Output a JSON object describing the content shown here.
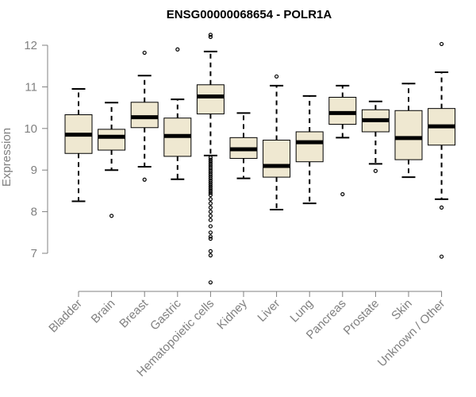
{
  "chart_data": {
    "type": "boxplot",
    "title": "ENSG00000068654 - POLR1A",
    "xlabel": "",
    "ylabel": "Expression",
    "ylim": [
      6.15,
      12.25
    ],
    "yticks": [
      7,
      8,
      9,
      10,
      11,
      12
    ],
    "grid": false,
    "box_color": "#efe8d1",
    "categories": [
      "Bladder",
      "Brain",
      "Breast",
      "Gastric",
      "Hematopoietic cells",
      "Kidney",
      "Liver",
      "Lung",
      "Pancreas",
      "Prostate",
      "Skin",
      "Unknown / Other"
    ],
    "boxes": [
      {
        "low": 8.25,
        "q1": 9.4,
        "median": 9.85,
        "q3": 10.33,
        "high": 10.95,
        "outliers": []
      },
      {
        "low": 9.0,
        "q1": 9.48,
        "median": 9.8,
        "q3": 9.98,
        "high": 10.62,
        "outliers": [
          7.9
        ]
      },
      {
        "low": 9.08,
        "q1": 10.02,
        "median": 10.27,
        "q3": 10.63,
        "high": 11.27,
        "outliers": [
          8.77,
          11.82
        ]
      },
      {
        "low": 8.78,
        "q1": 9.33,
        "median": 9.82,
        "q3": 10.25,
        "high": 10.7,
        "outliers": [
          11.9
        ]
      },
      {
        "low": 9.35,
        "q1": 10.35,
        "median": 10.77,
        "q3": 11.05,
        "high": 11.85,
        "outliers": [
          12.2,
          12.25,
          9.3,
          9.25,
          9.2,
          9.15,
          9.1,
          9.05,
          9.0,
          8.95,
          8.9,
          8.85,
          8.8,
          8.75,
          8.7,
          8.65,
          8.6,
          8.55,
          8.5,
          8.45,
          8.4,
          8.3,
          8.2,
          8.1,
          8.0,
          7.9,
          7.8,
          7.65,
          7.5,
          7.4,
          7.35,
          7.05,
          6.95,
          6.3
        ]
      },
      {
        "low": 8.8,
        "q1": 9.28,
        "median": 9.5,
        "q3": 9.78,
        "high": 10.37,
        "outliers": []
      },
      {
        "low": 8.05,
        "q1": 8.83,
        "median": 9.1,
        "q3": 9.72,
        "high": 11.03,
        "outliers": [
          11.25
        ]
      },
      {
        "low": 8.2,
        "q1": 9.2,
        "median": 9.67,
        "q3": 9.92,
        "high": 10.78,
        "outliers": []
      },
      {
        "low": 9.78,
        "q1": 10.1,
        "median": 10.37,
        "q3": 10.75,
        "high": 11.03,
        "outliers": [
          8.42
        ]
      },
      {
        "low": 9.15,
        "q1": 9.92,
        "median": 10.2,
        "q3": 10.45,
        "high": 10.65,
        "outliers": [
          8.98
        ]
      },
      {
        "low": 8.83,
        "q1": 9.25,
        "median": 9.77,
        "q3": 10.43,
        "high": 11.08,
        "outliers": []
      },
      {
        "low": 8.3,
        "q1": 9.6,
        "median": 10.05,
        "q3": 10.48,
        "high": 11.35,
        "outliers": [
          12.03,
          8.1,
          6.92
        ]
      }
    ]
  }
}
